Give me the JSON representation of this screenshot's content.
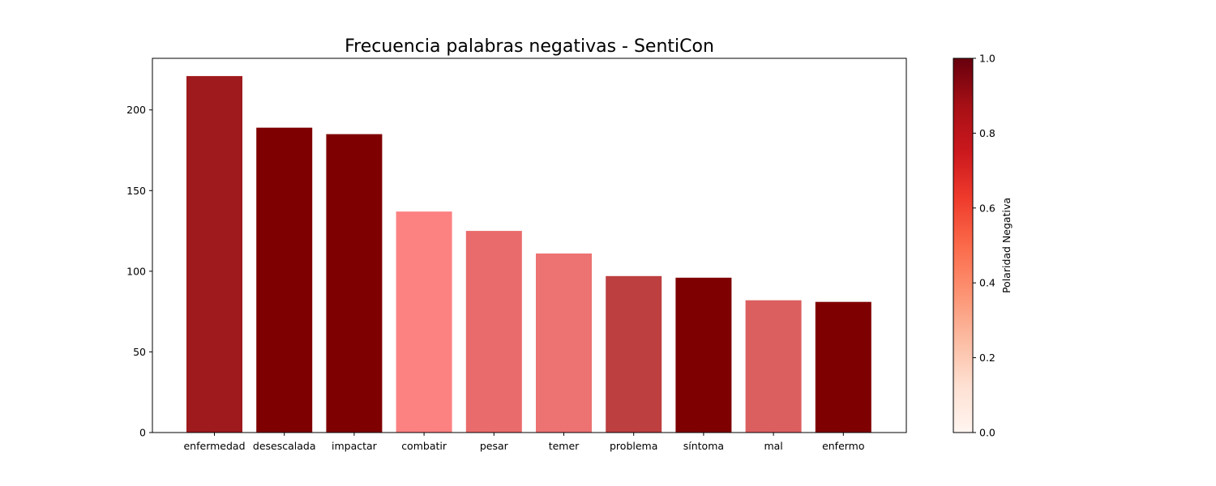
{
  "chart_data": {
    "type": "bar",
    "title": "Frecuencia palabras negativas - SentiCon",
    "xlabel": "",
    "ylabel": "",
    "categories": [
      "enfermedad",
      "desescalada",
      "impactar",
      "combatir",
      "pesar",
      "temer",
      "problema",
      "síntoma",
      "mal",
      "enfermo"
    ],
    "values": [
      221,
      189,
      185,
      137,
      125,
      111,
      97,
      96,
      82,
      81
    ],
    "polarity": [
      0.9,
      1.0,
      1.0,
      0.55,
      0.62,
      0.58,
      0.8,
      1.0,
      0.65,
      1.0
    ],
    "bar_colors": [
      "#9e1a1d",
      "#7f0000",
      "#7f0000",
      "#fc8181",
      "#ea6b6b",
      "#ed7272",
      "#bd3f40",
      "#7f0000",
      "#dc5f5f",
      "#7f0000"
    ],
    "ylim": [
      0,
      232
    ],
    "yticks": [
      0,
      50,
      100,
      150,
      200
    ],
    "grid": false,
    "colorbar": {
      "label": "Polaridad  Negativa",
      "range": [
        0,
        1
      ],
      "ticks": [
        "0.0",
        "0.2",
        "0.4",
        "0.6",
        "0.8",
        "1.0"
      ],
      "colormap": "Reds",
      "stops": [
        "#fff5f0",
        "#fee0d2",
        "#fcbba1",
        "#fc9272",
        "#fb6a4a",
        "#ef3b2c",
        "#cb181d",
        "#a50f15",
        "#67000d"
      ]
    }
  }
}
